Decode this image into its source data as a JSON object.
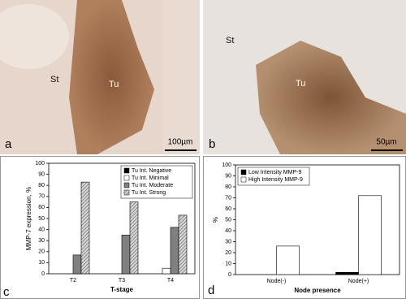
{
  "panels": [
    {
      "label": "a",
      "annotations": [
        "St",
        "Tu"
      ],
      "scale_bar": "100µm"
    },
    {
      "label": "b",
      "annotations": [
        "St",
        "Tu"
      ],
      "scale_bar": "50µm"
    }
  ],
  "chart_data": [
    {
      "type": "bar",
      "panel_label": "c",
      "ylabel": "MMP-7 expression, %",
      "xlabel": "T-stage",
      "categories": [
        "T2",
        "T3",
        "T4"
      ],
      "series": [
        {
          "name": "Tu Int. Negative",
          "color": "#000000",
          "values": [
            0,
            0,
            0
          ]
        },
        {
          "name": "Tu Int. Minimal",
          "color": "#ffffff",
          "values": [
            0,
            0,
            5
          ]
        },
        {
          "name": "Tu Int. Moderate",
          "color": "#808080",
          "values": [
            17,
            35,
            42
          ]
        },
        {
          "name": "Tu Int. Strong",
          "color": "#a0a0a0",
          "pattern": "hatch",
          "values": [
            83,
            65,
            53
          ]
        }
      ],
      "ylim": [
        0,
        100
      ],
      "yticks": [
        0,
        10,
        20,
        30,
        40,
        50,
        60,
        70,
        80,
        90,
        100
      ],
      "legend": "upper right"
    },
    {
      "type": "bar",
      "panel_label": "d",
      "ylabel": "%",
      "xlabel": "Node presence",
      "categories": [
        "Node(-)",
        "Node(+)"
      ],
      "series": [
        {
          "name": "Low Intensity MMP-9",
          "color": "#000000",
          "values": [
            0,
            2
          ]
        },
        {
          "name": "High Intensity MMP-9",
          "color": "#ffffff",
          "values": [
            26,
            72
          ]
        }
      ],
      "ylim": [
        0,
        100
      ],
      "yticks": [
        0,
        10,
        20,
        30,
        40,
        50,
        60,
        70,
        80,
        90,
        100
      ],
      "legend": "upper left"
    }
  ]
}
